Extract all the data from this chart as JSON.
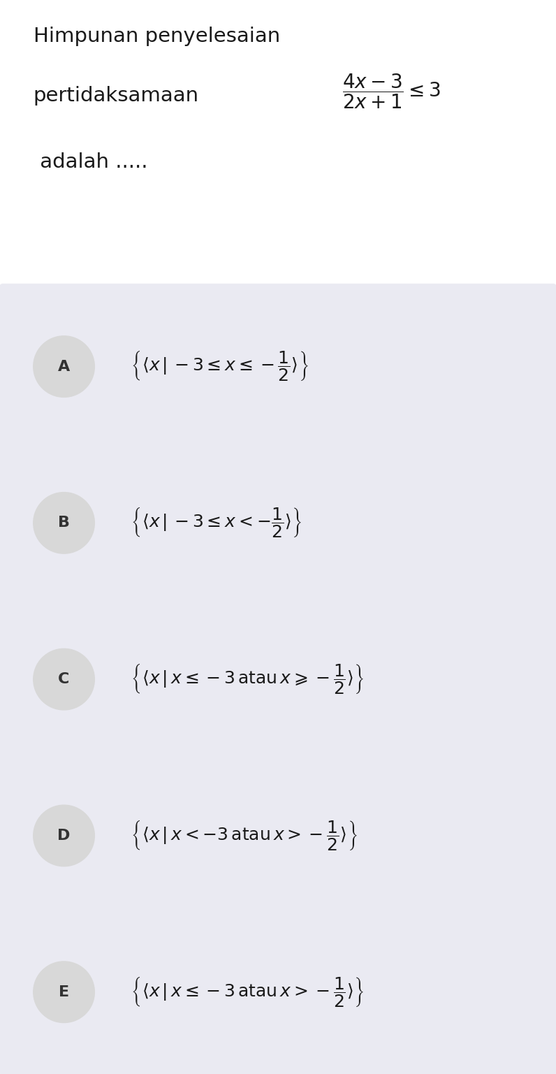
{
  "bg_color": "#ffffff",
  "option_bg_color": "#eaeaf2",
  "circle_color": "#d8d8d8",
  "fig_width": 7.96,
  "fig_height": 15.37,
  "option_labels": [
    "A",
    "B",
    "C",
    "D",
    "E"
  ]
}
